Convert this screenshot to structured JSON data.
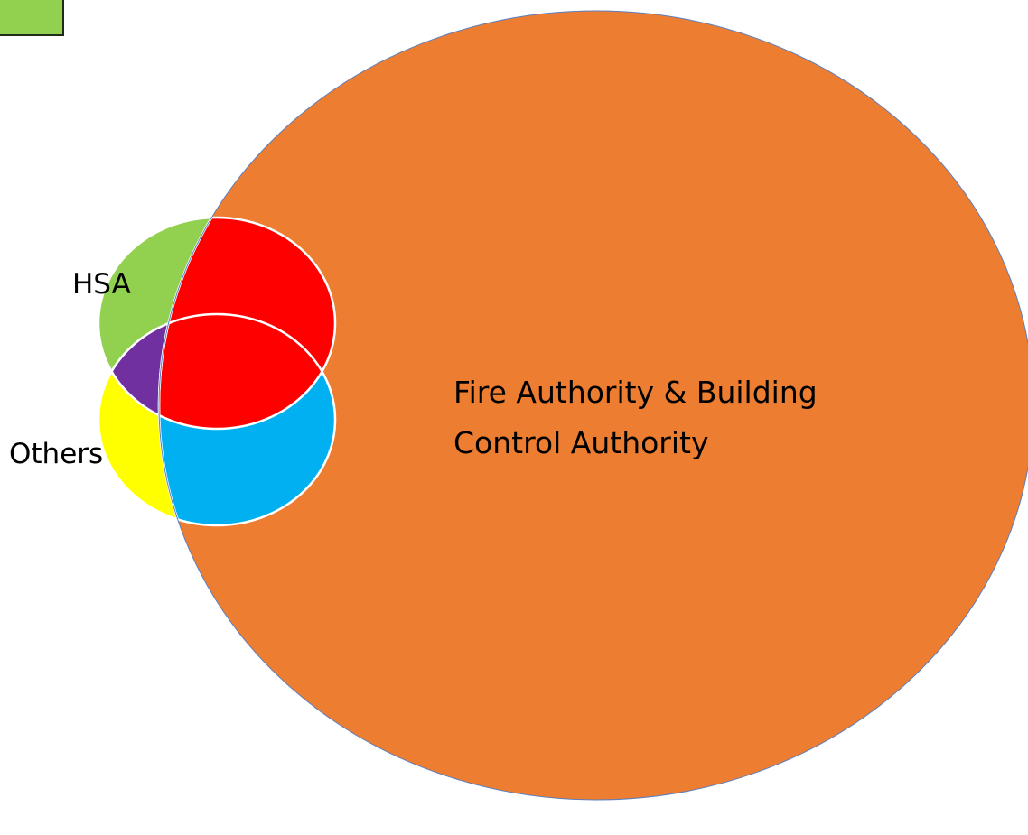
{
  "diagram": {
    "type": "venn",
    "labels": {
      "hsa": "HSA",
      "others": "Others",
      "fire_line1": "Fire Authority & Building",
      "fire_line2": "Control Authority"
    },
    "colors": {
      "fire_authority": "#ED7D31",
      "hsa": "#92D050",
      "others": "#FFFF00",
      "overlap_fire_hsa": "#FF0000",
      "overlap_fire_others": "#00B0F0",
      "overlap_hsa_others": "#7030A0",
      "overlap_all": "#FF0000",
      "corner_box": "#92D050",
      "outline": "#5B7FBF"
    }
  }
}
